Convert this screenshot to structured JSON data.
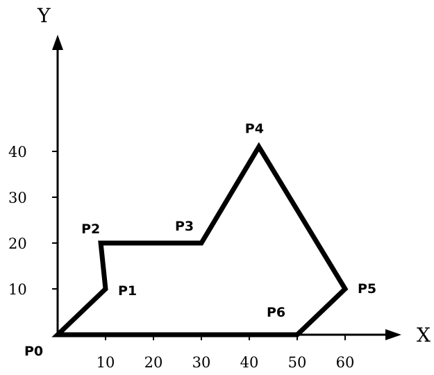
{
  "chart_data": {
    "type": "line",
    "xlabel": "X",
    "ylabel": "Y",
    "x_ticks": [
      "10",
      "20",
      "30",
      "40",
      "50",
      "60"
    ],
    "y_ticks": [
      "10",
      "20",
      "30",
      "40"
    ],
    "points": [
      {
        "label": "P0",
        "x": 0,
        "y": 0
      },
      {
        "label": "P1",
        "x": 10,
        "y": 10
      },
      {
        "label": "P2",
        "x": 9,
        "y": 20
      },
      {
        "label": "P3",
        "x": 30,
        "y": 20
      },
      {
        "label": "P4",
        "x": 42,
        "y": 41
      },
      {
        "label": "P5",
        "x": 60,
        "y": 10
      },
      {
        "label": "P6",
        "x": 50,
        "y": 0
      }
    ],
    "closed": true,
    "line_color": "#000000"
  }
}
